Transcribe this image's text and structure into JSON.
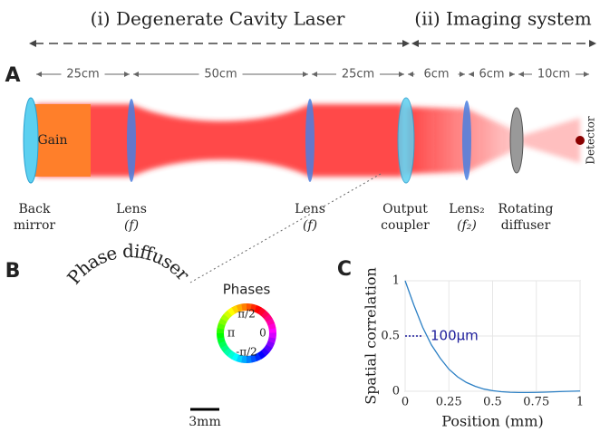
{
  "panel_a": {
    "label": "A",
    "sections": [
      "(i) Degenerate Cavity Laser",
      "(ii) Imaging system"
    ],
    "distances": [
      "25cm",
      "50cm",
      "25cm",
      "6cm",
      "6cm",
      "10cm"
    ],
    "gain": "Gain",
    "components": [
      [
        "Back",
        "mirror"
      ],
      [
        "Lens",
        "(f)"
      ],
      [
        "Lens",
        "(f)"
      ],
      [
        "Output",
        "coupler"
      ],
      [
        "Lens₂",
        "(f₂)"
      ],
      [
        "Rotating",
        "diffuser"
      ]
    ],
    "detector": "Detector"
  },
  "panel_b": {
    "label": "B",
    "title": "Phase diffuser",
    "legend_title": "Phases",
    "phases": [
      "π/2",
      "π",
      "0",
      "-π/2"
    ],
    "scale_bar": "3mm"
  },
  "chart_data": {
    "type": "line",
    "panel_label": "C",
    "x_label": "Position (mm)",
    "y_label": "Spatial correlation",
    "annotation": "100μm",
    "x": [
      0,
      0.05,
      0.1,
      0.15,
      0.2,
      0.25,
      0.3,
      0.35,
      0.4,
      0.45,
      0.5,
      0.55,
      0.6,
      0.65,
      0.7,
      0.75,
      0.8,
      0.85,
      0.9,
      0.95,
      1
    ],
    "series": [
      {
        "name": "Spatial correlation",
        "color": "#2b7fc4",
        "values": [
          1,
          0.78,
          0.58,
          0.42,
          0.3,
          0.2,
          0.13,
          0.08,
          0.045,
          0.02,
          0.005,
          -0.004,
          -0.009,
          -0.011,
          -0.011,
          -0.01,
          -0.008,
          -0.005,
          -0.002,
          0,
          0.002
        ]
      }
    ],
    "xlim": [
      0,
      1
    ],
    "ylim": [
      0,
      1
    ],
    "xticks": [
      0,
      0.25,
      0.5,
      0.75,
      1
    ],
    "yticks": [
      0,
      0.5,
      1
    ],
    "grid": true
  }
}
